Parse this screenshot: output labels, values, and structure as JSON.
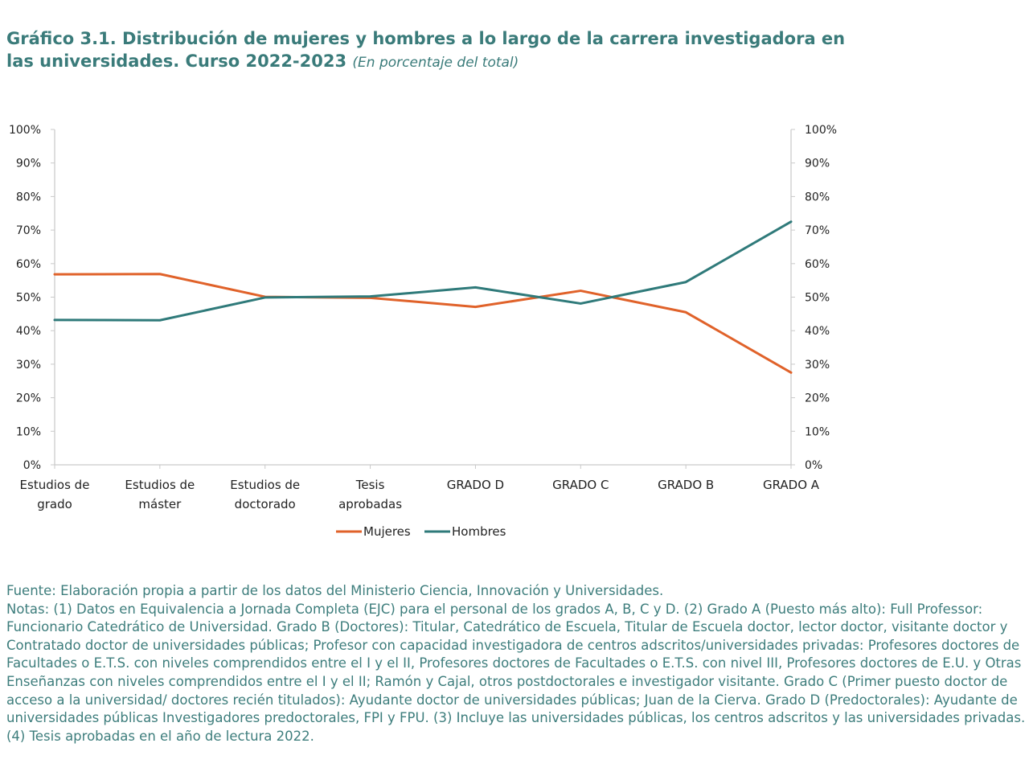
{
  "title": {
    "main": "Gráfico 3.1. Distribución de mujeres y hombres a lo largo de la carrera investigadora en las universidades. Curso 2022-2023",
    "subtitle": "(En porcentaje del total)"
  },
  "colors": {
    "mujeres": "#e0622a",
    "hombres": "#2f7a7a",
    "axis": "#c9c9c9",
    "text": "#3d7d7c"
  },
  "chart_data": {
    "type": "line",
    "categories": [
      [
        "Estudios de",
        "grado"
      ],
      [
        "Estudios de",
        "máster"
      ],
      [
        "Estudios de",
        "doctorado"
      ],
      [
        "Tesis",
        "aprobadas"
      ],
      [
        "GRADO D"
      ],
      [
        "GRADO C"
      ],
      [
        "GRADO B"
      ],
      [
        "GRADO A"
      ]
    ],
    "series": [
      {
        "name": "Mujeres",
        "color": "#e0622a",
        "values": [
          56.8,
          56.9,
          50.1,
          49.8,
          47.1,
          51.9,
          45.5,
          27.5
        ]
      },
      {
        "name": "Hombres",
        "color": "#2f7a7a",
        "values": [
          43.2,
          43.1,
          49.9,
          50.2,
          52.9,
          48.1,
          54.5,
          72.5
        ]
      }
    ],
    "ylim": [
      0,
      100
    ],
    "yticks": [
      "0%",
      "10%",
      "20%",
      "30%",
      "40%",
      "50%",
      "60%",
      "70%",
      "80%",
      "90%",
      "100%"
    ],
    "secondary_y_axis": true,
    "grid": false,
    "legend": "bottom-center"
  },
  "notes": {
    "source": "Fuente: Elaboración propia a partir de los datos del Ministerio Ciencia, Innovación y Universidades.",
    "text": "Notas: (1) Datos en Equivalencia a Jornada Completa (EJC) para el personal de los grados A, B, C y D. (2) Grado A (Puesto más alto): Full Professor: Funcionario Catedrático de Universidad. Grado B (Doctores): Titular, Catedrático de Escuela, Titular de Escuela doctor, lector doctor, visitante doctor y Contratado doctor de universidades públicas; Profesor con capacidad investigadora de centros adscritos/universidades privadas: Profesores doctores de Facultades o E.T.S. con niveles comprendidos entre el I y el II, Profesores doctores de Facultades o E.T.S. con nivel III, Profesores doctores de E.U. y Otras Enseñanzas con niveles comprendidos entre el I y el II; Ramón y Cajal, otros postdoctorales e investigador visitante. Grado C (Primer puesto doctor de acceso a la universidad/ doctores recién titulados): Ayudante doctor de universidades públicas; Juan de la Cierva. Grado D (Predoctorales): Ayudante de universidades públicas Investigadores predoctorales, FPI y FPU. (3) Incluye las universidades públicas, los centros adscritos y las universidades privadas. (4) Tesis aprobadas en el año de lectura 2022."
  }
}
